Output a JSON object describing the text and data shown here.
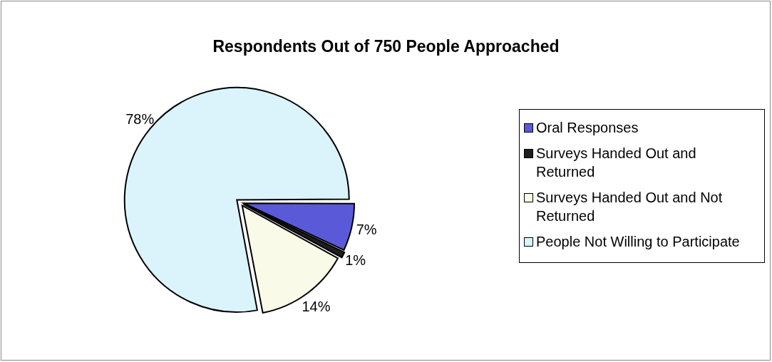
{
  "chart_data": {
    "type": "pie",
    "title": "Respondents Out of 750 People Approached",
    "categories": [
      "Oral Responses",
      "Surveys Handed Out and Returned",
      "Surveys Handed Out and Not Returned",
      "People Not Willing to Participate"
    ],
    "values": [
      7,
      1,
      14,
      78
    ],
    "colors": [
      "#5a5ad8",
      "#1e1e1e",
      "#fafae8",
      "#dbf3fb"
    ],
    "value_labels": [
      "7%",
      "1%",
      "14%",
      "78%"
    ],
    "legend": "right"
  }
}
